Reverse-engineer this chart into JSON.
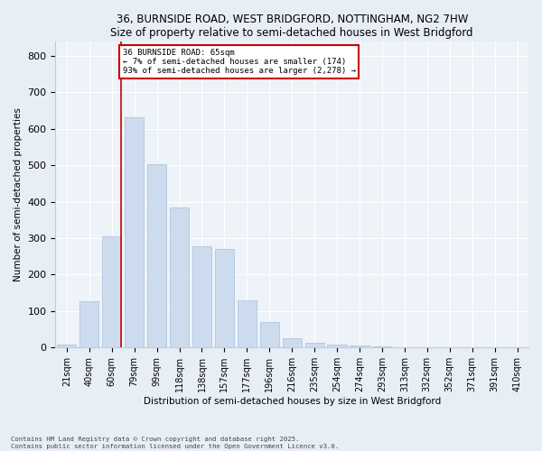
{
  "title1": "36, BURNSIDE ROAD, WEST BRIDGFORD, NOTTINGHAM, NG2 7HW",
  "title2": "Size of property relative to semi-detached houses in West Bridgford",
  "xlabel": "Distribution of semi-detached houses by size in West Bridgford",
  "ylabel": "Number of semi-detached properties",
  "categories": [
    "21sqm",
    "40sqm",
    "60sqm",
    "79sqm",
    "99sqm",
    "118sqm",
    "138sqm",
    "157sqm",
    "177sqm",
    "196sqm",
    "216sqm",
    "235sqm",
    "254sqm",
    "274sqm",
    "293sqm",
    "313sqm",
    "332sqm",
    "352sqm",
    "371sqm",
    "391sqm",
    "410sqm"
  ],
  "values": [
    8,
    128,
    305,
    632,
    502,
    383,
    277,
    270,
    130,
    70,
    25,
    13,
    8,
    5,
    4,
    2,
    0,
    0,
    0,
    0,
    0
  ],
  "bar_color": "#ccdcee",
  "bar_edge_color": "#a8c0d8",
  "vline_color": "#cc0000",
  "vline_x": 2.5,
  "annotation_title": "36 BURNSIDE ROAD: 65sqm",
  "annotation_line1": "← 7% of semi-detached houses are smaller (174)",
  "annotation_line2": "93% of semi-detached houses are larger (2,278) →",
  "annotation_box_color": "#cc0000",
  "ylim": [
    0,
    840
  ],
  "yticks": [
    0,
    100,
    200,
    300,
    400,
    500,
    600,
    700,
    800
  ],
  "footer1": "Contains HM Land Registry data © Crown copyright and database right 2025.",
  "footer2": "Contains public sector information licensed under the Open Government Licence v3.0.",
  "bg_color": "#e8eef5",
  "plot_bg_color": "#eef3f9"
}
